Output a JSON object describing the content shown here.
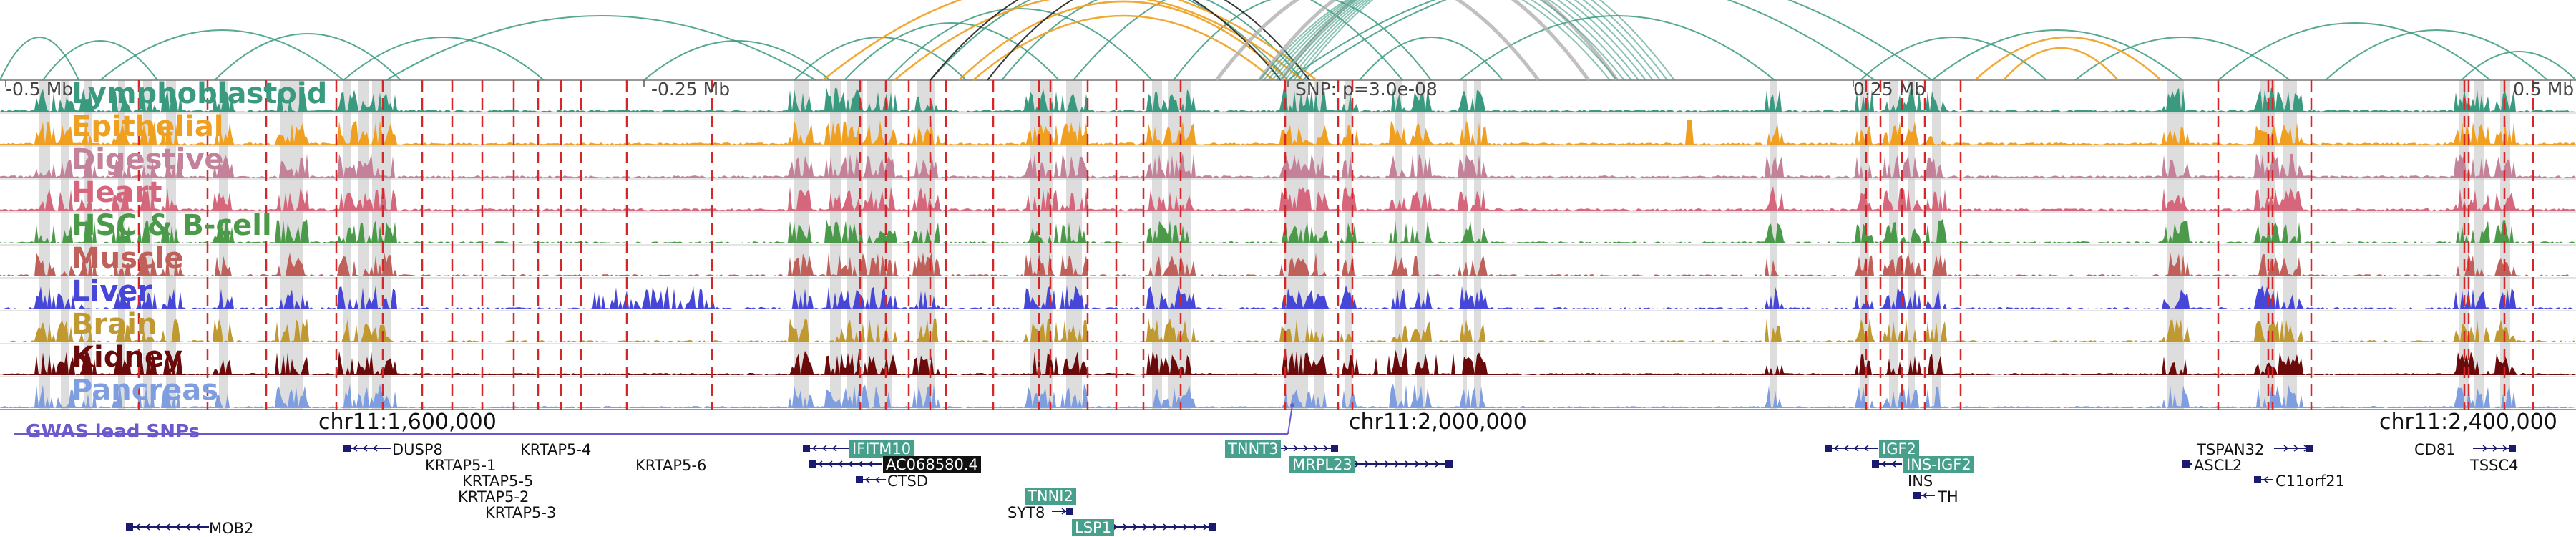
{
  "axis": {
    "left_label": "-0.5 Mb",
    "left_mid_label": "-0.25 Mb",
    "snp_label": "SNP: p=3.0e-08",
    "right_mid_label": "0.25 Mb",
    "right_label": "0.5 Mb",
    "coord_1": "chr11:1,600,000",
    "coord_2": "chr11:2,000,000",
    "coord_3": "chr11:2,400,000",
    "gwas_label": "GWAS lead SNPs"
  },
  "colors": {
    "grey_band": "#d7d7d7",
    "red_marker": "#d62728",
    "loop_teal": "#3a9a80",
    "loop_orange": "#f0a020",
    "loop_black": "#222222",
    "loop_grey": "#b0b0b0",
    "gwas": "#6a5acd",
    "gene": "#1a1a6e"
  },
  "tracks": [
    {
      "label": "Lymphoblastoid",
      "color": "#3a9a80"
    },
    {
      "label": "Epithelial",
      "color": "#f0a020"
    },
    {
      "label": "Digestive",
      "color": "#c4829a"
    },
    {
      "label": "Heart",
      "color": "#d6667c"
    },
    {
      "label": "HSC & B-cell",
      "color": "#4a9a4a"
    },
    {
      "label": "Muscle",
      "color": "#c0605a"
    },
    {
      "label": "Liver",
      "color": "#4646d8"
    },
    {
      "label": "Brain",
      "color": "#c09a30"
    },
    {
      "label": "Kidney",
      "color": "#6a0a0a"
    },
    {
      "label": "Pancreas",
      "color": "#7f9ee0"
    }
  ],
  "genes": [
    {
      "name": "DUSP8",
      "style": "plain"
    },
    {
      "name": "KRTAP5-1",
      "style": "plain"
    },
    {
      "name": "KRTAP5-4",
      "style": "plain"
    },
    {
      "name": "KRTAP5-5",
      "style": "plain"
    },
    {
      "name": "KRTAP5-2",
      "style": "plain"
    },
    {
      "name": "KRTAP5-3",
      "style": "plain"
    },
    {
      "name": "KRTAP5-6",
      "style": "plain"
    },
    {
      "name": "MOB2",
      "style": "plain"
    },
    {
      "name": "IFITM10",
      "style": "hl"
    },
    {
      "name": "AC068580.4",
      "style": "dark"
    },
    {
      "name": "CTSD",
      "style": "plain"
    },
    {
      "name": "TNNI2",
      "style": "hl"
    },
    {
      "name": "SYT8",
      "style": "plain"
    },
    {
      "name": "LSP1",
      "style": "hl"
    },
    {
      "name": "TNNT3",
      "style": "hl"
    },
    {
      "name": "MRPL23",
      "style": "hl"
    },
    {
      "name": "IGF2",
      "style": "hl"
    },
    {
      "name": "INS-IGF2",
      "style": "hl"
    },
    {
      "name": "INS",
      "style": "plain"
    },
    {
      "name": "TH",
      "style": "plain"
    },
    {
      "name": "TSPAN32",
      "style": "plain"
    },
    {
      "name": "ASCL2",
      "style": "plain"
    },
    {
      "name": "C11orf21",
      "style": "plain"
    },
    {
      "name": "CD81",
      "style": "plain"
    },
    {
      "name": "TSSC4",
      "style": "plain"
    }
  ]
}
